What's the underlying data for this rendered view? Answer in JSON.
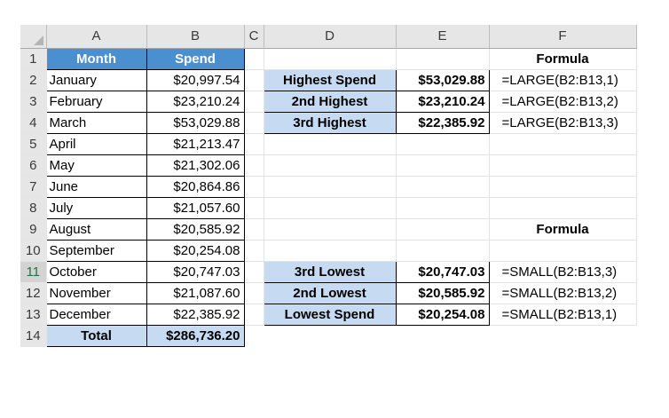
{
  "sheet": {
    "columns": [
      "A",
      "B",
      "C",
      "D",
      "E",
      "F"
    ],
    "rows": [
      "1",
      "2",
      "3",
      "4",
      "5",
      "6",
      "7",
      "8",
      "9",
      "10",
      "11",
      "12",
      "13",
      "14"
    ],
    "headers": {
      "month": "Month",
      "spend": "Spend"
    },
    "months": [
      "January",
      "February",
      "March",
      "April",
      "May",
      "June",
      "July",
      "August",
      "September",
      "October",
      "November",
      "December"
    ],
    "spend": [
      "$20,997.54",
      "$23,210.24",
      "$53,029.88",
      "$21,213.47",
      "$21,302.06",
      "$20,864.86",
      "$21,057.60",
      "$20,585.92",
      "$20,254.08",
      "$20,747.03",
      "$21,087.60",
      "$22,385.92"
    ],
    "total_label": "Total",
    "total_value": "$286,736.20"
  },
  "large_block": {
    "formula_header": "Formula",
    "rows": [
      {
        "label": "Highest Spend",
        "value": "$53,029.88",
        "formula": "=LARGE(B2:B13,1)"
      },
      {
        "label": "2nd Highest",
        "value": "$23,210.24",
        "formula": "=LARGE(B2:B13,2)"
      },
      {
        "label": "3rd Highest",
        "value": "$22,385.92",
        "formula": "=LARGE(B2:B13,3)"
      }
    ]
  },
  "small_block": {
    "formula_header": "Formula",
    "rows": [
      {
        "label": "3rd Lowest",
        "value": "$20,747.03",
        "formula": "=SMALL(B2:B13,3)"
      },
      {
        "label": "2nd Lowest",
        "value": "$20,585.92",
        "formula": "=SMALL(B2:B13,2)"
      },
      {
        "label": "Lowest Spend",
        "value": "$20,254.08",
        "formula": "=SMALL(B2:B13,1)"
      }
    ]
  },
  "colors": {
    "header_blue": "#4a8fd0",
    "label_blue": "#c6daf1",
    "grid_header_gray": "#e6e6e6"
  },
  "icons": {
    "corner": "select-all-triangle-icon"
  }
}
